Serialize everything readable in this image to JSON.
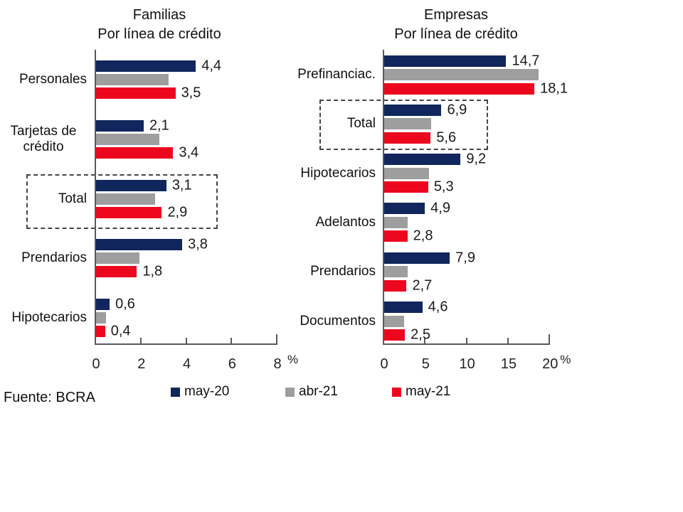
{
  "source": "Fuente: BCRA",
  "colors": {
    "navy": "#10265c",
    "gray": "#9e9e9e",
    "red": "#ed071e",
    "axis": "#595959"
  },
  "legend": {
    "items": [
      "may-20",
      "abr-21",
      "may-21"
    ]
  },
  "chart_data": [
    {
      "type": "bar",
      "orientation": "horizontal",
      "title": "Familias",
      "subtitle": "Por línea de crédito",
      "xlabel": "%",
      "xlim": [
        0,
        8
      ],
      "xticks": [
        0,
        2,
        4,
        6,
        8
      ],
      "grid": false,
      "legend_position": "bottom",
      "categories": [
        "Personales",
        "Tarjetas de crédito",
        "Total",
        "Prendarios",
        "Hipotecarios"
      ],
      "highlighted_category": "Total",
      "series": [
        {
          "name": "may-20",
          "color": "#10265c",
          "values": [
            4.4,
            2.1,
            3.1,
            3.8,
            0.6
          ],
          "value_labels": [
            "4,4",
            "2,1",
            "3,1",
            "3,8",
            "0,6"
          ]
        },
        {
          "name": "abr-21",
          "color": "#9e9e9e",
          "values": [
            3.2,
            2.8,
            2.6,
            1.9,
            0.45
          ],
          "value_labels": [
            "",
            "",
            "",
            "",
            ""
          ]
        },
        {
          "name": "may-21",
          "color": "#ed071e",
          "values": [
            3.5,
            3.4,
            2.9,
            1.8,
            0.4
          ],
          "value_labels": [
            "3,5",
            "3,4",
            "2,9",
            "1,8",
            "0,4"
          ]
        }
      ]
    },
    {
      "type": "bar",
      "orientation": "horizontal",
      "title": "Empresas",
      "subtitle": "Por línea de crédito",
      "xlabel": "%",
      "xlim": [
        0,
        20
      ],
      "xticks": [
        0,
        5,
        10,
        15,
        20
      ],
      "grid": false,
      "legend_position": "bottom",
      "categories": [
        "Prefinanciac.",
        "Total",
        "Hipotecarios",
        "Adelantos",
        "Prendarios",
        "Documentos"
      ],
      "highlighted_category": "Total",
      "series": [
        {
          "name": "may-20",
          "color": "#10265c",
          "values": [
            14.7,
            6.9,
            9.2,
            4.9,
            7.9,
            4.6
          ],
          "value_labels": [
            "14,7",
            "6,9",
            "9,2",
            "4,9",
            "7,9",
            "4,6"
          ]
        },
        {
          "name": "abr-21",
          "color": "#9e9e9e",
          "values": [
            18.6,
            5.7,
            5.4,
            2.8,
            2.8,
            2.4
          ],
          "value_labels": [
            "",
            "",
            "",
            "",
            "",
            ""
          ]
        },
        {
          "name": "may-21",
          "color": "#ed071e",
          "values": [
            18.1,
            5.6,
            5.3,
            2.8,
            2.7,
            2.5
          ],
          "value_labels": [
            "18,1",
            "5,6",
            "5,3",
            "2,8",
            "2,7",
            "2,5"
          ]
        }
      ]
    }
  ]
}
